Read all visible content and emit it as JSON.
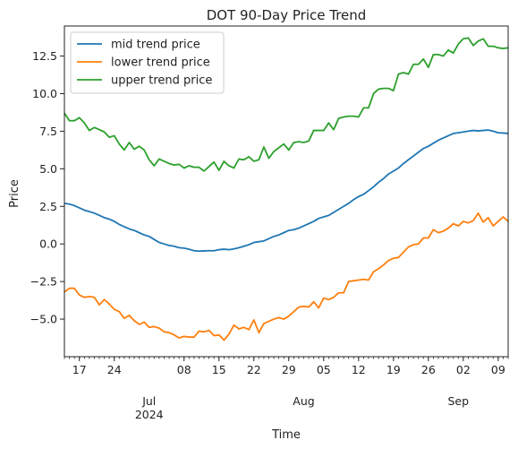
{
  "chart_data": {
    "type": "line",
    "title": "DOT 90-Day Price Trend",
    "xlabel": "Time",
    "ylabel": "Price",
    "x_start": "2024-06-14",
    "x_end": "2024-09-11",
    "xlim": [
      "2024-06-14",
      "2024-09-11"
    ],
    "ylim": [
      -7.5,
      14.5
    ],
    "yticks": [
      -5.0,
      -2.5,
      0.0,
      2.5,
      5.0,
      7.5,
      10.0,
      12.5
    ],
    "ytick_labels": [
      "−5.0",
      "−2.5",
      "0.0",
      "2.5",
      "5.0",
      "7.5",
      "10.0",
      "12.5"
    ],
    "xticks_major": [
      {
        "date": "2024-06-17",
        "label": "17"
      },
      {
        "date": "2024-06-24",
        "label": "24"
      },
      {
        "date": "2024-07-01",
        "label": "Jul\n2024"
      },
      {
        "date": "2024-07-08",
        "label": "08"
      },
      {
        "date": "2024-07-15",
        "label": "15"
      },
      {
        "date": "2024-07-22",
        "label": "22"
      },
      {
        "date": "2024-07-29",
        "label": "29"
      },
      {
        "date": "2024-08-01",
        "label": "Aug"
      },
      {
        "date": "2024-08-05",
        "label": "05"
      },
      {
        "date": "2024-08-12",
        "label": "12"
      },
      {
        "date": "2024-08-19",
        "label": "19"
      },
      {
        "date": "2024-08-26",
        "label": "26"
      },
      {
        "date": "2024-09-01",
        "label": "Sep"
      },
      {
        "date": "2024-09-02",
        "label": "02"
      },
      {
        "date": "2024-09-09",
        "label": "09"
      }
    ],
    "grid": false,
    "legend_position": "top-left",
    "series": [
      {
        "name": "mid trend price",
        "color": "#1f77b4",
        "values": [
          2.7,
          2.65,
          2.55,
          2.4,
          2.25,
          2.15,
          2.05,
          1.9,
          1.75,
          1.65,
          1.5,
          1.3,
          1.15,
          1.0,
          0.9,
          0.75,
          0.6,
          0.5,
          0.3,
          0.1,
          0.0,
          -0.1,
          -0.15,
          -0.25,
          -0.28,
          -0.35,
          -0.45,
          -0.48,
          -0.46,
          -0.45,
          -0.45,
          -0.38,
          -0.35,
          -0.38,
          -0.33,
          -0.25,
          -0.15,
          -0.05,
          0.1,
          0.15,
          0.2,
          0.35,
          0.5,
          0.6,
          0.75,
          0.9,
          0.95,
          1.05,
          1.2,
          1.35,
          1.5,
          1.7,
          1.8,
          1.9,
          2.1,
          2.3,
          2.5,
          2.7,
          2.95,
          3.15,
          3.3,
          3.55,
          3.8,
          4.1,
          4.35,
          4.65,
          4.85,
          5.05,
          5.35,
          5.6,
          5.85,
          6.1,
          6.35,
          6.5,
          6.7,
          6.9,
          7.05,
          7.2,
          7.35,
          7.4,
          7.45,
          7.5,
          7.55,
          7.52,
          7.55,
          7.58,
          7.5,
          7.4,
          7.38,
          7.35
        ]
      },
      {
        "name": "lower trend price",
        "color": "#ff7f0e",
        "values": [
          -3.2,
          -2.95,
          -2.95,
          -3.4,
          -3.55,
          -3.5,
          -3.55,
          -4.05,
          -3.7,
          -4.0,
          -4.35,
          -4.5,
          -4.95,
          -4.75,
          -5.1,
          -5.35,
          -5.2,
          -5.55,
          -5.5,
          -5.6,
          -5.85,
          -5.9,
          -6.05,
          -6.25,
          -6.15,
          -6.2,
          -6.2,
          -5.8,
          -5.85,
          -5.75,
          -6.1,
          -6.05,
          -6.4,
          -6.0,
          -5.4,
          -5.65,
          -5.55,
          -5.7,
          -5.05,
          -5.9,
          -5.3,
          -5.15,
          -5.0,
          -4.9,
          -5.0,
          -4.8,
          -4.5,
          -4.2,
          -4.15,
          -4.2,
          -3.85,
          -4.25,
          -3.6,
          -3.7,
          -3.55,
          -3.25,
          -3.25,
          -2.5,
          -2.45,
          -2.4,
          -2.35,
          -2.4,
          -1.85,
          -1.65,
          -1.4,
          -1.1,
          -0.95,
          -0.9,
          -0.55,
          -0.2,
          -0.05,
          0.0,
          0.4,
          0.4,
          0.95,
          0.75,
          0.85,
          1.05,
          1.35,
          1.2,
          1.5,
          1.4,
          1.55,
          2.05,
          1.45,
          1.75,
          1.2,
          1.5,
          1.8,
          1.5
        ]
      },
      {
        "name": "upper trend price",
        "color": "#2ca02c",
        "values": [
          8.7,
          8.2,
          8.2,
          8.4,
          8.05,
          7.55,
          7.75,
          7.6,
          7.45,
          7.1,
          7.2,
          6.65,
          6.25,
          6.75,
          6.3,
          6.5,
          6.25,
          5.6,
          5.2,
          5.65,
          5.5,
          5.35,
          5.25,
          5.3,
          5.05,
          5.2,
          5.1,
          5.1,
          4.85,
          5.15,
          5.45,
          4.9,
          5.5,
          5.2,
          5.05,
          5.65,
          5.6,
          5.8,
          5.5,
          5.6,
          6.45,
          5.7,
          6.15,
          6.4,
          6.65,
          6.25,
          6.75,
          6.8,
          6.75,
          6.85,
          7.55,
          7.55,
          7.55,
          8.05,
          7.6,
          8.35,
          8.45,
          8.5,
          8.5,
          8.45,
          9.05,
          9.05,
          10.0,
          10.3,
          10.35,
          10.35,
          10.2,
          11.3,
          11.4,
          11.3,
          11.95,
          11.95,
          12.3,
          11.75,
          12.6,
          12.6,
          12.5,
          12.9,
          12.7,
          13.3,
          13.65,
          13.7,
          13.2,
          13.5,
          13.65,
          13.15,
          13.15,
          13.05,
          13.0,
          13.05
        ]
      }
    ]
  }
}
